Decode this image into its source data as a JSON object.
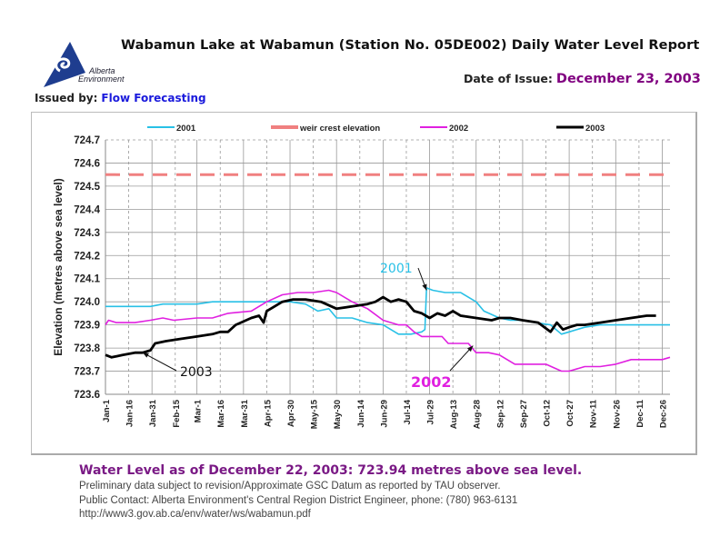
{
  "header": {
    "title": "Wabamun Lake at Wabamun (Station No. 05DE002) Daily Water Level Report",
    "date_of_issue_label": "Date of Issue:",
    "date_of_issue_value": "December 23, 2003",
    "issued_by_label": "Issued by:",
    "issued_by_value": "Flow Forecasting",
    "logo_line1": "Alberta",
    "logo_line2": "Environment"
  },
  "colors": {
    "s2001": "#28c0e6",
    "weir": "#f08080",
    "s2002": "#e020e0",
    "s2003": "#000000",
    "purple_text": "#800080",
    "blue_text": "#1a1adc"
  },
  "chart_data": {
    "type": "line",
    "title": "",
    "xlabel": "",
    "ylabel": "Elevation (metres above sea level)",
    "ylim": [
      723.6,
      724.7
    ],
    "yticks": [
      723.6,
      723.7,
      723.8,
      723.9,
      724.0,
      724.1,
      724.2,
      724.3,
      724.4,
      724.5,
      724.6,
      724.7
    ],
    "xlim": [
      1,
      365
    ],
    "x_tick_days": [
      1,
      16,
      31,
      46,
      60,
      75,
      90,
      105,
      120,
      135,
      150,
      165,
      180,
      195,
      210,
      225,
      240,
      255,
      270,
      285,
      300,
      315,
      330,
      345,
      360
    ],
    "x_tick_labels": [
      "Jan-1",
      "Jan-16",
      "Jan-31",
      "Feb-15",
      "Mar-1",
      "Mar-16",
      "Mar-31",
      "Apr-15",
      "Apr-30",
      "May-15",
      "May-30",
      "Jun-14",
      "Jun-29",
      "Jul-14",
      "Jul-29",
      "Aug-13",
      "Aug-28",
      "Sep-12",
      "Sep-27",
      "Oct-12",
      "Oct-27",
      "Nov-11",
      "Nov-26",
      "Dec-11",
      "Dec-26"
    ],
    "grid": true,
    "legend_position": "top",
    "x_unit": "day of year",
    "series": [
      {
        "name": "2001",
        "x": [
          1,
          5,
          10,
          20,
          30,
          38,
          45,
          60,
          70,
          80,
          95,
          110,
          120,
          130,
          138,
          145,
          150,
          160,
          170,
          180,
          190,
          198,
          205,
          207,
          208,
          212,
          220,
          230,
          240,
          245,
          255,
          262,
          270,
          278,
          288,
          295,
          300,
          310,
          320,
          330,
          345,
          355,
          365
        ],
        "values": [
          723.98,
          723.98,
          723.98,
          723.98,
          723.98,
          723.99,
          723.99,
          723.99,
          724.0,
          724.0,
          724.0,
          724.0,
          724.0,
          723.99,
          723.96,
          723.97,
          723.93,
          723.93,
          723.91,
          723.9,
          723.86,
          723.86,
          723.87,
          723.88,
          724.06,
          724.05,
          724.04,
          724.04,
          724.0,
          723.96,
          723.93,
          723.92,
          723.92,
          723.91,
          723.9,
          723.86,
          723.87,
          723.89,
          723.9,
          723.9,
          723.9,
          723.9,
          723.9
        ]
      },
      {
        "name": "weir crest elevation",
        "x": [
          1,
          365
        ],
        "values": [
          724.55,
          724.55
        ],
        "dashed": true
      },
      {
        "name": "2002",
        "x": [
          1,
          3,
          8,
          20,
          30,
          38,
          45,
          60,
          70,
          80,
          95,
          105,
          115,
          125,
          135,
          145,
          150,
          160,
          170,
          180,
          190,
          195,
          200,
          205,
          210,
          218,
          222,
          228,
          235,
          240,
          248,
          255,
          265,
          275,
          285,
          295,
          300,
          310,
          320,
          330,
          340,
          350,
          360,
          365
        ],
        "values": [
          723.9,
          723.92,
          723.91,
          723.91,
          723.92,
          723.93,
          723.92,
          723.93,
          723.93,
          723.95,
          723.96,
          724.0,
          724.03,
          724.04,
          724.04,
          724.05,
          724.04,
          724.0,
          723.97,
          723.92,
          723.9,
          723.9,
          723.87,
          723.85,
          723.85,
          723.85,
          723.82,
          723.82,
          723.82,
          723.78,
          723.78,
          723.77,
          723.73,
          723.73,
          723.73,
          723.7,
          723.7,
          723.72,
          723.72,
          723.73,
          723.75,
          723.75,
          723.75,
          723.76
        ]
      },
      {
        "name": "2003",
        "x": [
          1,
          5,
          12,
          20,
          25,
          30,
          33,
          40,
          50,
          60,
          70,
          75,
          80,
          85,
          95,
          100,
          103,
          105,
          110,
          115,
          122,
          130,
          140,
          150,
          160,
          170,
          175,
          180,
          185,
          190,
          195,
          200,
          205,
          210,
          215,
          220,
          225,
          230,
          240,
          250,
          255,
          262,
          270,
          280,
          288,
          292,
          296,
          300,
          305,
          310,
          320,
          330,
          340,
          350,
          356
        ],
        "values": [
          723.77,
          723.76,
          723.77,
          723.78,
          723.78,
          723.79,
          723.82,
          723.83,
          723.84,
          723.85,
          723.86,
          723.87,
          723.87,
          723.9,
          723.93,
          723.94,
          723.91,
          723.96,
          723.98,
          724.0,
          724.01,
          724.01,
          724.0,
          723.97,
          723.98,
          723.99,
          724.0,
          724.02,
          724.0,
          724.01,
          724.0,
          723.96,
          723.95,
          723.93,
          723.95,
          723.94,
          723.96,
          723.94,
          723.93,
          723.92,
          723.93,
          723.93,
          723.92,
          723.91,
          723.87,
          723.91,
          723.88,
          723.89,
          723.9,
          723.9,
          723.91,
          723.92,
          723.93,
          723.94,
          723.94
        ]
      }
    ],
    "annotations": [
      {
        "text": "2001",
        "color_key": "s2001",
        "target_day": 208,
        "target_value": 724.05
      },
      {
        "text": "2002",
        "color_key": "s2002",
        "target_day": 238,
        "target_value": 723.81
      },
      {
        "text": "2003",
        "color_key": "s2003",
        "target_day": 25,
        "target_value": 723.78
      }
    ]
  },
  "footer": {
    "water_level": "Water Level as of December 22, 2003:  723.94 metres above sea level.",
    "line1": "Preliminary data subject to revision/Approximate GSC Datum as reported by TAU observer.",
    "line2": "Public Contact: Alberta Environment's Central Region District Engineer, phone: (780) 963-6131",
    "line3": "http://www3.gov.ab.ca/env/water/ws/wabamun.pdf"
  }
}
